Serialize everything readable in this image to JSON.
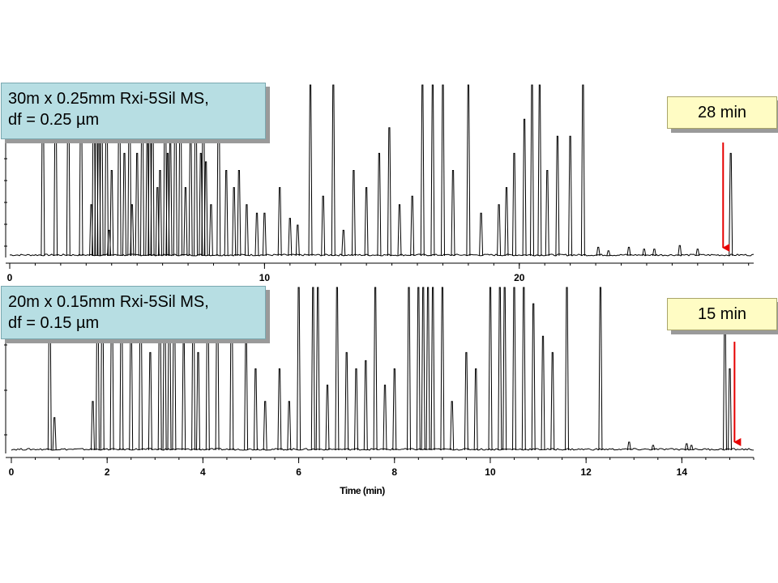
{
  "chart_data": [
    {
      "type": "line",
      "title": "",
      "column_label": [
        "30m x 0.25mm Rxi-5Sil MS,",
        "df = 0.25 µm"
      ],
      "analysis_time_label": "28 min",
      "xlabel": "",
      "x_ticks": [
        0,
        10,
        20
      ],
      "xlim": [
        0,
        29.2
      ],
      "arrow_at_min": 28.0,
      "peaks_min": [
        1.3,
        1.8,
        2.3,
        2.8,
        3.2,
        3.3,
        3.4,
        3.5,
        3.6,
        3.8,
        3.9,
        4.0,
        4.3,
        4.5,
        4.7,
        4.8,
        5.0,
        5.2,
        5.4,
        5.5,
        5.6,
        5.8,
        5.9,
        6.1,
        6.2,
        6.3,
        6.5,
        6.7,
        6.9,
        7.1,
        7.3,
        7.5,
        7.6,
        7.7,
        7.9,
        8.2,
        8.5,
        8.8,
        9.0,
        9.3,
        9.7,
        10.0,
        10.6,
        11.0,
        11.3,
        11.8,
        12.3,
        12.7,
        13.1,
        13.5,
        14.0,
        14.5,
        14.9,
        15.3,
        15.8,
        16.2,
        16.6,
        17.0,
        17.4,
        18.0,
        18.5,
        19.2,
        19.5,
        19.8,
        20.2,
        20.5,
        20.8,
        21.1,
        21.5,
        22.0,
        22.5,
        23.1,
        23.5,
        24.3,
        24.9,
        25.3,
        26.3,
        27.0,
        28.3
      ],
      "peak_heights_rel": [
        0.97,
        0.97,
        1.0,
        1.0,
        0.3,
        1.0,
        1.0,
        0.8,
        1.0,
        1.0,
        0.15,
        0.5,
        1.0,
        0.6,
        1.0,
        0.3,
        0.6,
        1.0,
        0.7,
        1.0,
        1.0,
        0.4,
        0.5,
        1.0,
        0.6,
        0.7,
        1.0,
        1.0,
        0.4,
        0.8,
        1.0,
        0.6,
        1.0,
        0.55,
        0.3,
        1.0,
        0.5,
        0.4,
        0.5,
        0.3,
        0.25,
        0.25,
        0.4,
        0.22,
        0.18,
        1.0,
        0.35,
        1.0,
        0.15,
        0.5,
        0.4,
        0.6,
        0.75,
        0.3,
        0.35,
        1.0,
        1.0,
        1.0,
        0.5,
        1.0,
        0.25,
        0.3,
        0.4,
        0.6,
        0.8,
        1.0,
        1.0,
        0.5,
        0.7,
        0.7,
        1.0,
        0.05,
        0.03,
        0.05,
        0.04,
        0.04,
        0.06,
        0.04,
        0.6
      ]
    },
    {
      "type": "line",
      "title": "",
      "column_label": [
        "20m x 0.15mm Rxi-5Sil MS,",
        "df = 0.15 µm"
      ],
      "analysis_time_label": "15 min",
      "xlabel": "Time (min)",
      "x_ticks": [
        0,
        2,
        4,
        6,
        8,
        10,
        12,
        14
      ],
      "xlim": [
        0,
        15.5
      ],
      "arrow_at_min": 15.1,
      "peaks_min": [
        0.8,
        0.9,
        1.7,
        1.8,
        1.9,
        2.1,
        2.3,
        2.5,
        2.7,
        2.9,
        3.1,
        3.2,
        3.3,
        3.4,
        3.6,
        3.8,
        3.9,
        4.1,
        4.3,
        4.6,
        4.9,
        5.1,
        5.3,
        5.6,
        5.8,
        6.0,
        6.3,
        6.4,
        6.6,
        6.8,
        7.0,
        7.2,
        7.4,
        7.6,
        7.8,
        8.0,
        8.3,
        8.5,
        8.6,
        8.7,
        8.8,
        9.0,
        9.2,
        9.5,
        9.7,
        10.0,
        10.2,
        10.3,
        10.5,
        10.7,
        10.9,
        11.1,
        11.3,
        11.6,
        12.3,
        12.9,
        13.4,
        14.1,
        14.2,
        14.9,
        15.0
      ],
      "peak_heights_rel": [
        1.0,
        0.2,
        0.3,
        1.0,
        1.0,
        1.0,
        1.0,
        0.8,
        1.0,
        0.6,
        1.0,
        1.0,
        1.0,
        1.0,
        0.7,
        1.0,
        0.6,
        1.0,
        1.0,
        1.0,
        0.7,
        0.5,
        0.3,
        0.5,
        0.3,
        1.0,
        1.0,
        1.0,
        0.4,
        1.0,
        0.6,
        0.5,
        0.55,
        1.0,
        0.4,
        0.5,
        1.0,
        1.0,
        1.0,
        1.0,
        1.0,
        1.0,
        0.3,
        0.6,
        0.5,
        1.0,
        1.0,
        1.0,
        1.0,
        1.0,
        0.9,
        0.7,
        0.6,
        1.0,
        1.0,
        0.05,
        0.03,
        0.04,
        0.03,
        0.83,
        0.5
      ]
    }
  ]
}
